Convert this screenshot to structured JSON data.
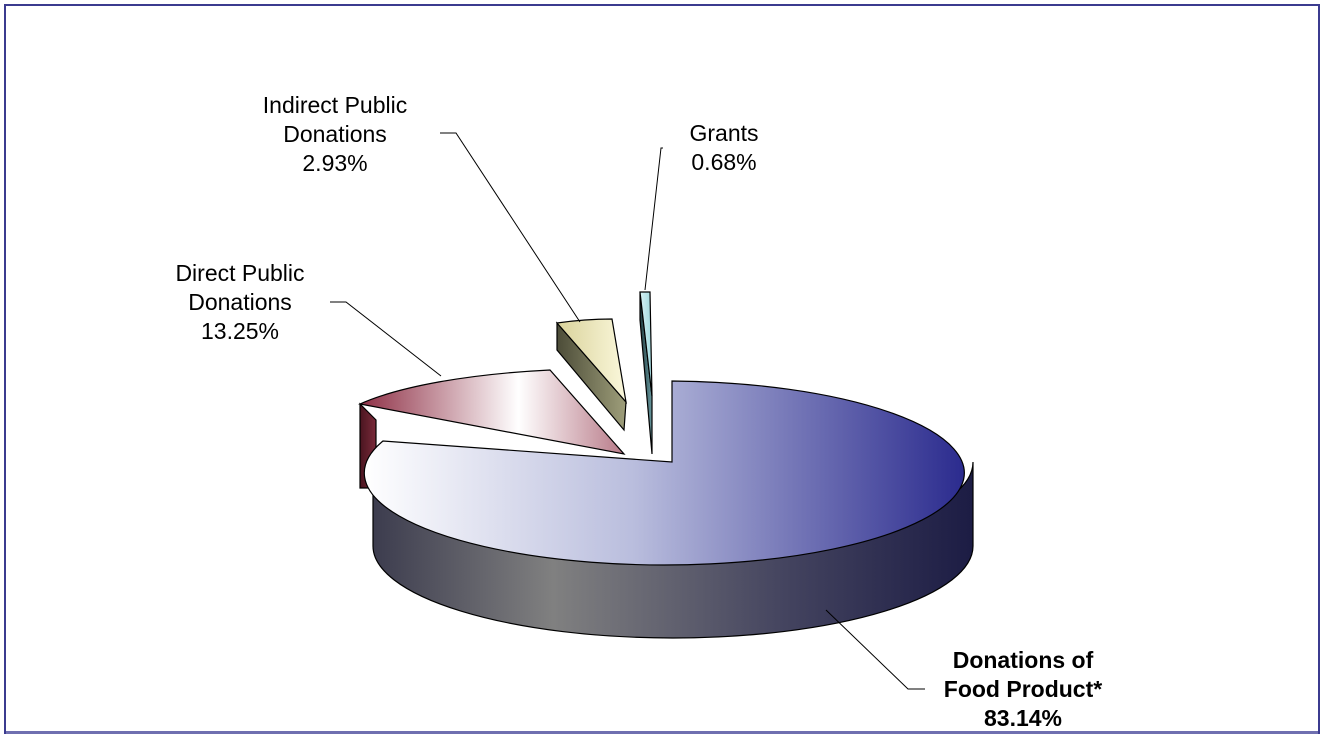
{
  "chart_data": {
    "type": "pie",
    "style": "3d-exploded",
    "slices": [
      {
        "label_lines": [
          "Donations of",
          "Food Product*"
        ],
        "value": 83.14,
        "pct_text": "83.14%",
        "color": "#2e2e8c",
        "emphasis": "bold"
      },
      {
        "label_lines": [
          "Grants"
        ],
        "value": 0.68,
        "pct_text": "0.68%",
        "color": "#bfe8ec"
      },
      {
        "label_lines": [
          "Indirect Public",
          "Donations"
        ],
        "value": 2.93,
        "pct_text": "2.93%",
        "color": "#f4f0c8"
      },
      {
        "label_lines": [
          "Direct Public",
          "Donations"
        ],
        "value": 13.25,
        "pct_text": "13.25%",
        "color": "#8e2f45"
      }
    ],
    "legend": "none"
  }
}
